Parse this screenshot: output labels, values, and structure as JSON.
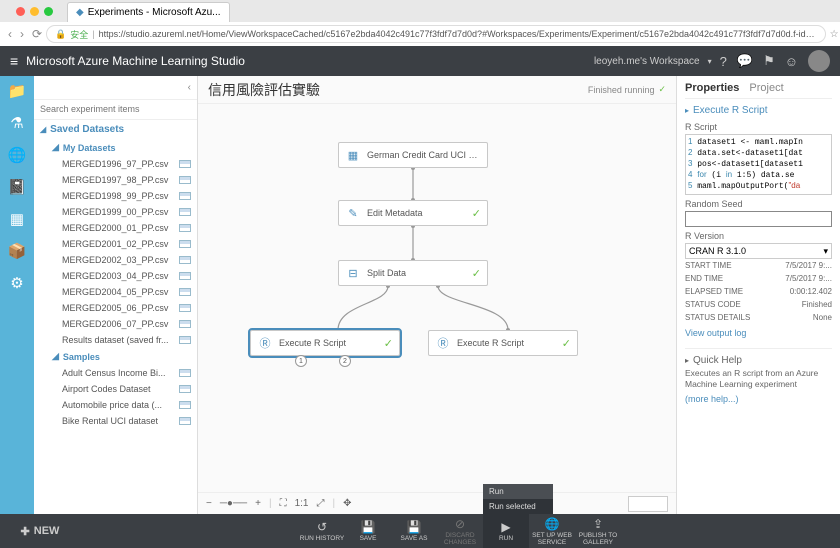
{
  "browser": {
    "tab_title": "Experiments - Microsoft Azu...",
    "url_secure_label": "安全",
    "url": "https://studio.azureml.net/Home/ViewWorkspaceCached/c5167e2bda4042c491c77f3fdf7d7d0d?#Workspaces/Experiments/Experiment/c5167e2bda4042c491c77f3fdf7d7d0d.f-id.59..."
  },
  "header": {
    "app_title": "Microsoft Azure Machine Learning Studio",
    "workspace": "leoyeh.me's Workspace"
  },
  "tree": {
    "search_placeholder": "Search experiment items",
    "saved_datasets": "Saved Datasets",
    "my_datasets": "My Datasets",
    "datasets": [
      "MERGED1996_97_PP.csv",
      "MERGED1997_98_PP.csv",
      "MERGED1998_99_PP.csv",
      "MERGED1999_00_PP.csv",
      "MERGED2000_01_PP.csv",
      "MERGED2001_02_PP.csv",
      "MERGED2002_03_PP.csv",
      "MERGED2003_04_PP.csv",
      "MERGED2004_05_PP.csv",
      "MERGED2005_06_PP.csv",
      "MERGED2006_07_PP.csv",
      "Results dataset (saved fr..."
    ],
    "samples": "Samples",
    "sample_items": [
      "Adult Census Income Bi...",
      "Airport Codes Dataset",
      "Automobile price data (...",
      "Bike Rental UCI dataset"
    ]
  },
  "canvas": {
    "title": "信用風險評估實驗",
    "status": "Finished running",
    "nodes": {
      "n1": "German Credit Card UCI dat...",
      "n2": "Edit Metadata",
      "n3": "Split Data",
      "n4": "Execute R Script",
      "n5": "Execute R Script"
    },
    "zoom": "1:1"
  },
  "props": {
    "tab_properties": "Properties",
    "tab_project": "Project",
    "section": "Execute R Script",
    "rscript_label": "R Script",
    "code": "1 dataset1 <- maml.mapIn\n2 data.set<-dataset1[dat\n3 pos<-dataset1[dataset1\n4 for (i in 1:5) data.se\n5 maml.mapOutputPort(\"da",
    "random_seed_label": "Random Seed",
    "r_version_label": "R Version",
    "r_version": "CRAN R 3.1.0",
    "start_time_l": "START TIME",
    "start_time_v": "7/5/2017 9:...",
    "end_time_l": "END TIME",
    "end_time_v": "7/5/2017 9:...",
    "elapsed_l": "ELAPSED TIME",
    "elapsed_v": "0:00:12.402",
    "status_code_l": "STATUS CODE",
    "status_code_v": "Finished",
    "status_det_l": "STATUS DETAILS",
    "status_det_v": "None",
    "view_log": "View output log",
    "help_title": "Quick Help",
    "help_text": "Executes an R script from an Azure Machine Learning experiment",
    "more_help": "(more help...)"
  },
  "bottom": {
    "new": "NEW",
    "run_history": "RUN HISTORY",
    "save": "SAVE",
    "save_as": "SAVE AS",
    "discard": "DISCARD\nCHANGES",
    "run": "RUN",
    "run_menu_1": "Run",
    "run_menu_2": "Run selected",
    "setup_ws": "SET UP WEB\nSERVICE",
    "publish": "PUBLISH TO\nGALLERY"
  }
}
